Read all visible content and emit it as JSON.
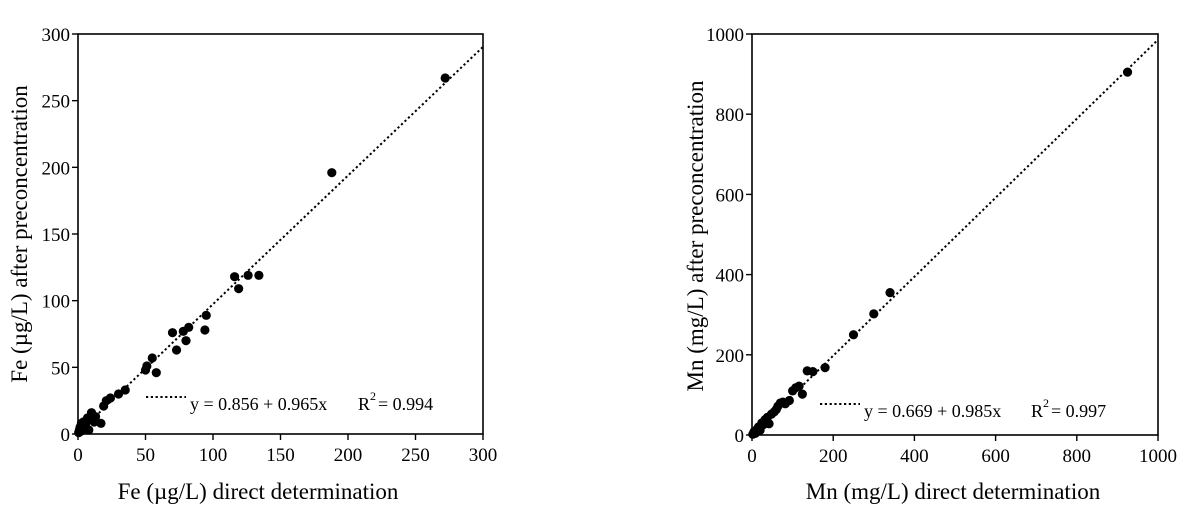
{
  "chart_data": [
    {
      "type": "scatter",
      "title": "",
      "xlabel": "Fe (µg/L) direct determination",
      "ylabel": "Fe (µg/L) after preconcentration",
      "xlim": [
        0,
        300
      ],
      "ylim": [
        0,
        300
      ],
      "xticks": [
        "0",
        "50",
        "100",
        "150",
        "200",
        "250",
        "300"
      ],
      "yticks": [
        "0",
        "50",
        "100",
        "150",
        "200",
        "250",
        "300"
      ],
      "grid": false,
      "legend": {
        "placement": "bottom-right",
        "equation": "y = 0.856 + 0.965x",
        "r2_label": "R",
        "r2_sup": "2",
        "r2_value": "= 0.994"
      },
      "fit": {
        "intercept": 0.856,
        "slope": 0.965,
        "style": "dotted"
      },
      "points": [
        [
          0.5,
          1
        ],
        [
          1,
          3
        ],
        [
          1.5,
          5
        ],
        [
          2,
          2
        ],
        [
          2.5,
          8
        ],
        [
          3,
          6
        ],
        [
          4,
          9
        ],
        [
          5,
          4
        ],
        [
          5.5,
          7
        ],
        [
          6,
          10
        ],
        [
          7,
          12
        ],
        [
          8,
          3
        ],
        [
          9,
          11
        ],
        [
          10,
          16
        ],
        [
          12,
          9
        ],
        [
          13,
          13
        ],
        [
          17,
          8
        ],
        [
          19,
          21
        ],
        [
          21,
          25
        ],
        [
          24,
          27
        ],
        [
          30,
          30
        ],
        [
          35,
          33
        ],
        [
          50,
          48
        ],
        [
          51,
          51
        ],
        [
          55,
          57
        ],
        [
          58,
          46
        ],
        [
          70,
          76
        ],
        [
          73,
          63
        ],
        [
          78,
          77
        ],
        [
          80,
          70
        ],
        [
          82,
          80
        ],
        [
          94,
          78
        ],
        [
          95,
          89
        ],
        [
          116,
          118
        ],
        [
          119,
          109
        ],
        [
          126,
          119
        ],
        [
          134,
          119
        ],
        [
          188,
          196
        ],
        [
          272,
          267
        ]
      ]
    },
    {
      "type": "scatter",
      "title": "",
      "xlabel": "Mn (mg/L) direct determination",
      "ylabel": "Mn (mg/L) after preconcentration",
      "xlim": [
        0,
        1000
      ],
      "ylim": [
        0,
        1000
      ],
      "xticks": [
        "0",
        "200",
        "400",
        "600",
        "800",
        "1000"
      ],
      "yticks": [
        "0",
        "200",
        "400",
        "600",
        "800",
        "1000"
      ],
      "grid": false,
      "legend": {
        "placement": "bottom-right",
        "equation": "y = 0.669 + 0.985x",
        "r2_label": "R",
        "r2_sup": "2",
        "r2_value": "= 0.997"
      },
      "fit": {
        "intercept": 0.669,
        "slope": 0.985,
        "style": "dotted"
      },
      "points": [
        [
          2,
          2
        ],
        [
          5,
          8
        ],
        [
          8,
          4
        ],
        [
          12,
          14
        ],
        [
          16,
          20
        ],
        [
          20,
          12
        ],
        [
          24,
          30
        ],
        [
          28,
          26
        ],
        [
          32,
          38
        ],
        [
          38,
          44
        ],
        [
          42,
          28
        ],
        [
          48,
          52
        ],
        [
          55,
          58
        ],
        [
          60,
          64
        ],
        [
          64,
          72
        ],
        [
          70,
          80
        ],
        [
          76,
          82
        ],
        [
          82,
          78
        ],
        [
          92,
          86
        ],
        [
          100,
          110
        ],
        [
          108,
          118
        ],
        [
          116,
          122
        ],
        [
          124,
          102
        ],
        [
          136,
          160
        ],
        [
          150,
          158
        ],
        [
          180,
          168
        ],
        [
          250,
          250
        ],
        [
          300,
          302
        ],
        [
          340,
          355
        ],
        [
          925,
          905
        ]
      ]
    }
  ]
}
